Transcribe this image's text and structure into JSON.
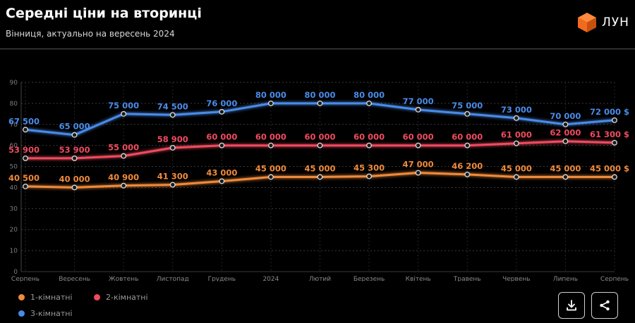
{
  "header": {
    "title": "Середні ціни на вторинці",
    "subtitle": "Вінниця, актуально на вересень 2024"
  },
  "logo": {
    "text": "ЛУН",
    "icon": "orange-cube-icon",
    "color": "#f26b1d"
  },
  "actions": {
    "download_icon": "download-icon",
    "share_icon": "share-icon"
  },
  "chart_data": {
    "type": "line",
    "title": "Середні ціни на вторинці",
    "categories": [
      "Серпень",
      "Вересень",
      "Жовтень",
      "Листопад",
      "Грудень",
      "2024",
      "Лютий",
      "Березень",
      "Квітень",
      "Травень",
      "Червень",
      "Липень",
      "Серпень"
    ],
    "ylim": [
      0,
      90
    ],
    "yticks": [
      0,
      10,
      20,
      30,
      40,
      50,
      60,
      70,
      80,
      90
    ],
    "grid": true,
    "legend_position": "bottom-left",
    "series": [
      {
        "name": "1-кімнатні",
        "color": "#f08a3a",
        "values": [
          40.5,
          40.0,
          40.9,
          41.3,
          43.0,
          45.0,
          45.0,
          45.3,
          47.0,
          46.2,
          45.0,
          45.0,
          45.0
        ],
        "labels": [
          "40 500",
          "40 000",
          "40 900",
          "41 300",
          "43 000",
          "45 000",
          "45 000",
          "45 300",
          "47 000",
          "46 200",
          "45 000",
          "45 000",
          "45 000 $"
        ]
      },
      {
        "name": "2-кімнатні",
        "color": "#ef4b5e",
        "values": [
          53.9,
          53.9,
          55.0,
          58.9,
          60.0,
          60.0,
          60.0,
          60.0,
          60.0,
          60.0,
          61.0,
          62.0,
          61.3
        ],
        "labels": [
          "53 900",
          "53 900",
          "55 000",
          "58 900",
          "60 000",
          "60 000",
          "60 000",
          "60 000",
          "60 000",
          "60 000",
          "61 000",
          "62 000",
          "61 300 $"
        ]
      },
      {
        "name": "3-кімнатні",
        "color": "#4a8be8",
        "values": [
          67.5,
          65.0,
          75.0,
          74.5,
          76.0,
          80.0,
          80.0,
          80.0,
          77.0,
          75.0,
          73.0,
          70.0,
          72.0
        ],
        "labels": [
          "67 500",
          "65 000",
          "75 000",
          "74 500",
          "76 000",
          "80 000",
          "80 000",
          "80 000",
          "77 000",
          "75 000",
          "73 000",
          "70 000",
          "72 000 $"
        ]
      }
    ]
  }
}
